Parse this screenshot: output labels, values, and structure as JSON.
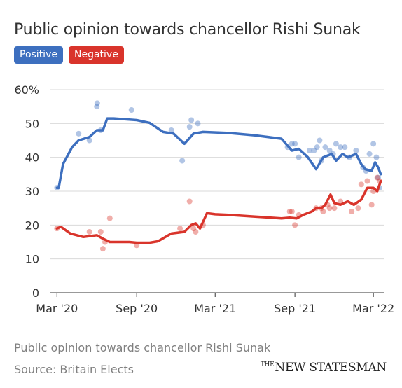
{
  "header": {
    "title": "Public opinion towards chancellor Rishi Sunak"
  },
  "legend": [
    {
      "label": "Positive",
      "color": "#3d6fbf"
    },
    {
      "label": "Negative",
      "color": "#d9342b"
    }
  ],
  "chart_data": {
    "type": "line",
    "title": "Public opinion towards chancellor Rishi Sunak",
    "xlabel": "",
    "ylabel": "",
    "x_ticks": [
      "Mar '20",
      "Sep '20",
      "Mar '21",
      "Sep '21",
      "Mar '22"
    ],
    "y_ticks": [
      "0",
      "10",
      "20",
      "30",
      "40",
      "50",
      "60%"
    ],
    "ylim": [
      0,
      60
    ],
    "xlim": [
      "2020-02-15",
      "2022-03-25"
    ],
    "grid": "horizontal",
    "legend_position": "top-left",
    "series": [
      {
        "name": "Positive",
        "color": "#3d6fbf",
        "trend": [
          [
            "2020-03-01",
            31
          ],
          [
            "2020-03-05",
            31
          ],
          [
            "2020-03-15",
            38
          ],
          [
            "2020-04-05",
            43
          ],
          [
            "2020-04-20",
            45
          ],
          [
            "2020-05-15",
            46
          ],
          [
            "2020-06-01",
            48
          ],
          [
            "2020-06-15",
            48
          ],
          [
            "2020-06-25",
            51.5
          ],
          [
            "2020-07-10",
            51.5
          ],
          [
            "2020-08-01",
            51.3
          ],
          [
            "2020-09-01",
            51
          ],
          [
            "2020-10-01",
            50.2
          ],
          [
            "2020-11-01",
            47.5
          ],
          [
            "2020-11-25",
            47
          ],
          [
            "2020-12-20",
            44
          ],
          [
            "2021-01-10",
            47
          ],
          [
            "2021-02-01",
            47.5
          ],
          [
            "2021-04-01",
            47.2
          ],
          [
            "2021-06-01",
            46.5
          ],
          [
            "2021-08-01",
            45.5
          ],
          [
            "2021-08-25",
            42
          ],
          [
            "2021-09-10",
            42.5
          ],
          [
            "2021-10-01",
            40
          ],
          [
            "2021-10-20",
            36.5
          ],
          [
            "2021-11-05",
            40
          ],
          [
            "2021-11-25",
            41
          ],
          [
            "2021-12-05",
            39
          ],
          [
            "2021-12-20",
            41
          ],
          [
            "2022-01-01",
            40
          ],
          [
            "2022-01-20",
            41
          ],
          [
            "2022-02-01",
            38
          ],
          [
            "2022-02-10",
            36.5
          ],
          [
            "2022-02-25",
            36
          ],
          [
            "2022-03-05",
            38.5
          ],
          [
            "2022-03-12",
            37
          ],
          [
            "2022-03-18",
            35
          ]
        ],
        "points": [
          [
            "2020-03-01",
            31
          ],
          [
            "2020-04-20",
            47
          ],
          [
            "2020-05-15",
            45
          ],
          [
            "2020-06-01",
            55
          ],
          [
            "2020-06-02",
            56
          ],
          [
            "2020-06-10",
            48
          ],
          [
            "2020-08-20",
            54
          ],
          [
            "2020-11-20",
            48
          ],
          [
            "2020-12-15",
            39
          ],
          [
            "2021-01-01",
            49
          ],
          [
            "2021-01-05",
            51
          ],
          [
            "2021-01-20",
            50
          ],
          [
            "2021-08-15",
            43
          ],
          [
            "2021-08-25",
            44
          ],
          [
            "2021-09-01",
            44
          ],
          [
            "2021-09-10",
            40
          ],
          [
            "2021-10-05",
            42
          ],
          [
            "2021-10-15",
            42
          ],
          [
            "2021-10-22",
            43
          ],
          [
            "2021-10-28",
            45
          ],
          [
            "2021-11-01",
            39
          ],
          [
            "2021-11-10",
            43
          ],
          [
            "2021-11-20",
            42
          ],
          [
            "2021-11-28",
            41
          ],
          [
            "2021-12-05",
            44
          ],
          [
            "2021-12-15",
            43
          ],
          [
            "2021-12-25",
            43
          ],
          [
            "2022-01-05",
            40
          ],
          [
            "2022-01-20",
            42
          ],
          [
            "2022-02-05",
            37
          ],
          [
            "2022-02-12",
            36
          ],
          [
            "2022-02-20",
            41
          ],
          [
            "2022-03-01",
            44
          ],
          [
            "2022-03-08",
            40
          ],
          [
            "2022-03-12",
            34
          ],
          [
            "2022-03-15",
            31
          ]
        ]
      },
      {
        "name": "Negative",
        "color": "#d9342b",
        "trend": [
          [
            "2020-03-01",
            19
          ],
          [
            "2020-03-10",
            19.5
          ],
          [
            "2020-04-01",
            17.5
          ],
          [
            "2020-05-01",
            16.5
          ],
          [
            "2020-06-01",
            17
          ],
          [
            "2020-06-15",
            16
          ],
          [
            "2020-07-01",
            15
          ],
          [
            "2020-07-25",
            15
          ],
          [
            "2020-08-15",
            15
          ],
          [
            "2020-09-01",
            14.8
          ],
          [
            "2020-10-01",
            14.8
          ],
          [
            "2020-10-20",
            15.2
          ],
          [
            "2020-11-20",
            17.5
          ],
          [
            "2020-12-20",
            18
          ],
          [
            "2021-01-05",
            20
          ],
          [
            "2021-01-15",
            20.5
          ],
          [
            "2021-01-25",
            19
          ],
          [
            "2021-02-10",
            23.5
          ],
          [
            "2021-03-01",
            23.2
          ],
          [
            "2021-04-01",
            23
          ],
          [
            "2021-06-01",
            22.5
          ],
          [
            "2021-08-01",
            22
          ],
          [
            "2021-08-20",
            22.2
          ],
          [
            "2021-09-05",
            22
          ],
          [
            "2021-09-20",
            23
          ],
          [
            "2021-10-10",
            24
          ],
          [
            "2021-10-20",
            25
          ],
          [
            "2021-11-01",
            25
          ],
          [
            "2021-11-10",
            26
          ],
          [
            "2021-11-22",
            29
          ],
          [
            "2021-12-01",
            26.5
          ],
          [
            "2021-12-15",
            26
          ],
          [
            "2022-01-01",
            27
          ],
          [
            "2022-01-15",
            26
          ],
          [
            "2022-02-01",
            27.5
          ],
          [
            "2022-02-15",
            31
          ],
          [
            "2022-03-01",
            31
          ],
          [
            "2022-03-10",
            30
          ],
          [
            "2022-03-18",
            33
          ]
        ],
        "points": [
          [
            "2020-03-01",
            19
          ],
          [
            "2020-05-15",
            18
          ],
          [
            "2020-06-10",
            18
          ],
          [
            "2020-06-15",
            13
          ],
          [
            "2020-06-20",
            15
          ],
          [
            "2020-07-01",
            22
          ],
          [
            "2020-09-01",
            14
          ],
          [
            "2020-12-10",
            19
          ],
          [
            "2021-01-01",
            27
          ],
          [
            "2021-01-10",
            19
          ],
          [
            "2021-01-15",
            18
          ],
          [
            "2021-02-01",
            20
          ],
          [
            "2021-08-20",
            24
          ],
          [
            "2021-08-25",
            24
          ],
          [
            "2021-09-01",
            20
          ],
          [
            "2021-09-10",
            23
          ],
          [
            "2021-10-20",
            25
          ],
          [
            "2021-11-01",
            25
          ],
          [
            "2021-11-05",
            24
          ],
          [
            "2021-11-15",
            26
          ],
          [
            "2021-11-20",
            25
          ],
          [
            "2021-12-01",
            25
          ],
          [
            "2021-12-15",
            27
          ],
          [
            "2022-01-10",
            24
          ],
          [
            "2022-01-25",
            25
          ],
          [
            "2022-02-01",
            32
          ],
          [
            "2022-02-15",
            33
          ],
          [
            "2022-02-25",
            26
          ],
          [
            "2022-03-01",
            30
          ],
          [
            "2022-03-10",
            34
          ],
          [
            "2022-03-15",
            33
          ]
        ]
      }
    ]
  },
  "footer": {
    "caption": "Public opinion towards chancellor Rishi Sunak",
    "source": "Source: Britain Elects",
    "brand_the": "THE",
    "brand_name": "NEW STATESMAN"
  }
}
